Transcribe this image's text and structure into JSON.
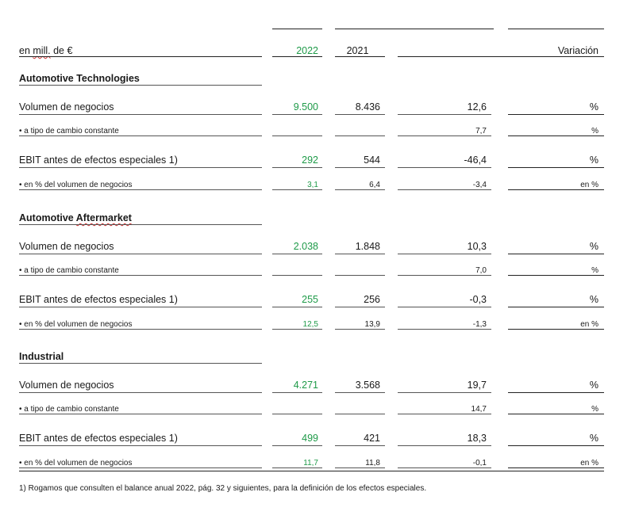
{
  "header": {
    "unit_prefix": "en ",
    "unit_squiggle": "mill.",
    "unit_suffix": " de €",
    "year_current": "2022",
    "year_prior": "2021",
    "change": "Variación"
  },
  "sections": [
    {
      "title_plain": "Automotive Technologies",
      "rows": [
        {
          "label": "Volumen de negocios",
          "current": "9.500",
          "prior": "8.436",
          "change": "12,6",
          "unit": "%"
        },
        {
          "label": "• a tipo de cambio constante",
          "current": "",
          "prior": "",
          "change": "7,7",
          "unit": "%"
        },
        {
          "label": "EBIT antes de efectos especiales 1)",
          "current": "292",
          "prior": "544",
          "change": "-46,4",
          "unit": "%"
        },
        {
          "label": "• en % del volumen de negocios",
          "current": "3,1",
          "prior": "6,4",
          "change": "-3,4",
          "unit": "en %"
        }
      ]
    },
    {
      "title_plain": "Automotive ",
      "title_squiggle": "Aftermarket",
      "rows": [
        {
          "label": "Volumen de negocios",
          "current": "2.038",
          "prior": "1.848",
          "change": "10,3",
          "unit": "%"
        },
        {
          "label": "• a tipo de cambio constante",
          "current": "",
          "prior": "",
          "change": "7,0",
          "unit": "%"
        },
        {
          "label": "EBIT antes de efectos especiales 1)",
          "current": "255",
          "prior": "256",
          "change": "-0,3",
          "unit": "%"
        },
        {
          "label": "• en % del volumen de negocios",
          "current": "12,5",
          "prior": "13,9",
          "change": "-1,3",
          "unit": "en %"
        }
      ]
    },
    {
      "title_plain": "Industrial",
      "rows": [
        {
          "label": "Volumen de negocios",
          "current": "4.271",
          "prior": "3.568",
          "change": "19,7",
          "unit": "%"
        },
        {
          "label": "• a tipo de cambio constante",
          "current": "",
          "prior": "",
          "change": "14,7",
          "unit": "%"
        },
        {
          "label": "EBIT antes de efectos especiales 1)",
          "current": "499",
          "prior": "421",
          "change": "18,3",
          "unit": "%"
        },
        {
          "label": "• en % del volumen de negocios",
          "current": "11,7",
          "prior": "11,8",
          "change": "-0,1",
          "unit": "en %"
        }
      ]
    }
  ],
  "footnote": "1) Rogamos que consulten el balance anual 2022, pág. 32 y siguientes, para la definición de los efectos especiales.",
  "colors": {
    "highlight": "#1e9a48",
    "text": "#1a1a1a"
  }
}
